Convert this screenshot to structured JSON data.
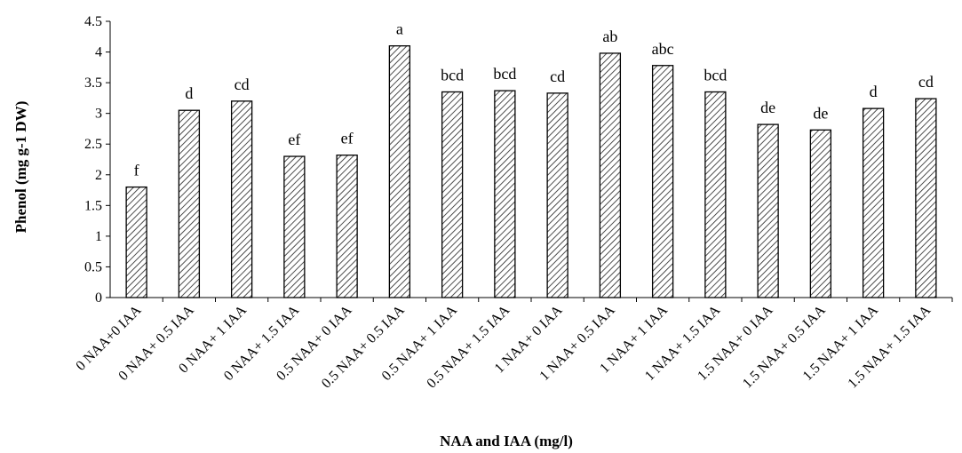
{
  "chart_data": {
    "type": "bar",
    "title": "",
    "xlabel": "NAA and IAA (mg/l)",
    "ylabel": "Phenol (mg g-1 DW)",
    "ylim": [
      0,
      4.5
    ],
    "yticks": [
      "0",
      "0.5",
      "1",
      "1.5",
      "2",
      "2.5",
      "3",
      "3.5",
      "4",
      "4.5"
    ],
    "ytick_values": [
      0,
      0.5,
      1,
      1.5,
      2,
      2.5,
      3,
      3.5,
      4,
      4.5
    ],
    "grid": false,
    "bar_fill": "diagonal hatch",
    "bar_color": "#000000",
    "categories": [
      "0 NAA+0 IAA",
      "0 NAA+ 0.5 IAA",
      "0 NAA+ 1 IAA",
      "0 NAA+ 1.5 IAA",
      "0.5 NAA+ 0 IAA",
      "0.5 NAA+ 0.5 IAA",
      "0.5 NAA+ 1 IAA",
      "0.5 NAA+ 1.5 IAA",
      "1 NAA+ 0 IAA",
      "1 NAA+ 0.5 IAA",
      "1 NAA+ 1 IAA",
      "1 NAA+ 1.5 IAA",
      "1.5 NAA+ 0 IAA",
      "1.5 NAA+ 0.5 IAA",
      "1.5 NAA+ 1 IAA",
      "1.5 NAA+ 1.5 IAA"
    ],
    "values": [
      1.8,
      3.05,
      3.2,
      2.3,
      2.32,
      4.1,
      3.35,
      3.37,
      3.33,
      3.98,
      3.78,
      3.35,
      2.82,
      2.73,
      3.08,
      3.24
    ],
    "labels": [
      "f",
      "d",
      "cd",
      "ef",
      "ef",
      "a",
      "bcd",
      "bcd",
      "cd",
      "ab",
      "abc",
      "bcd",
      "de",
      "de",
      "d",
      "cd"
    ]
  }
}
